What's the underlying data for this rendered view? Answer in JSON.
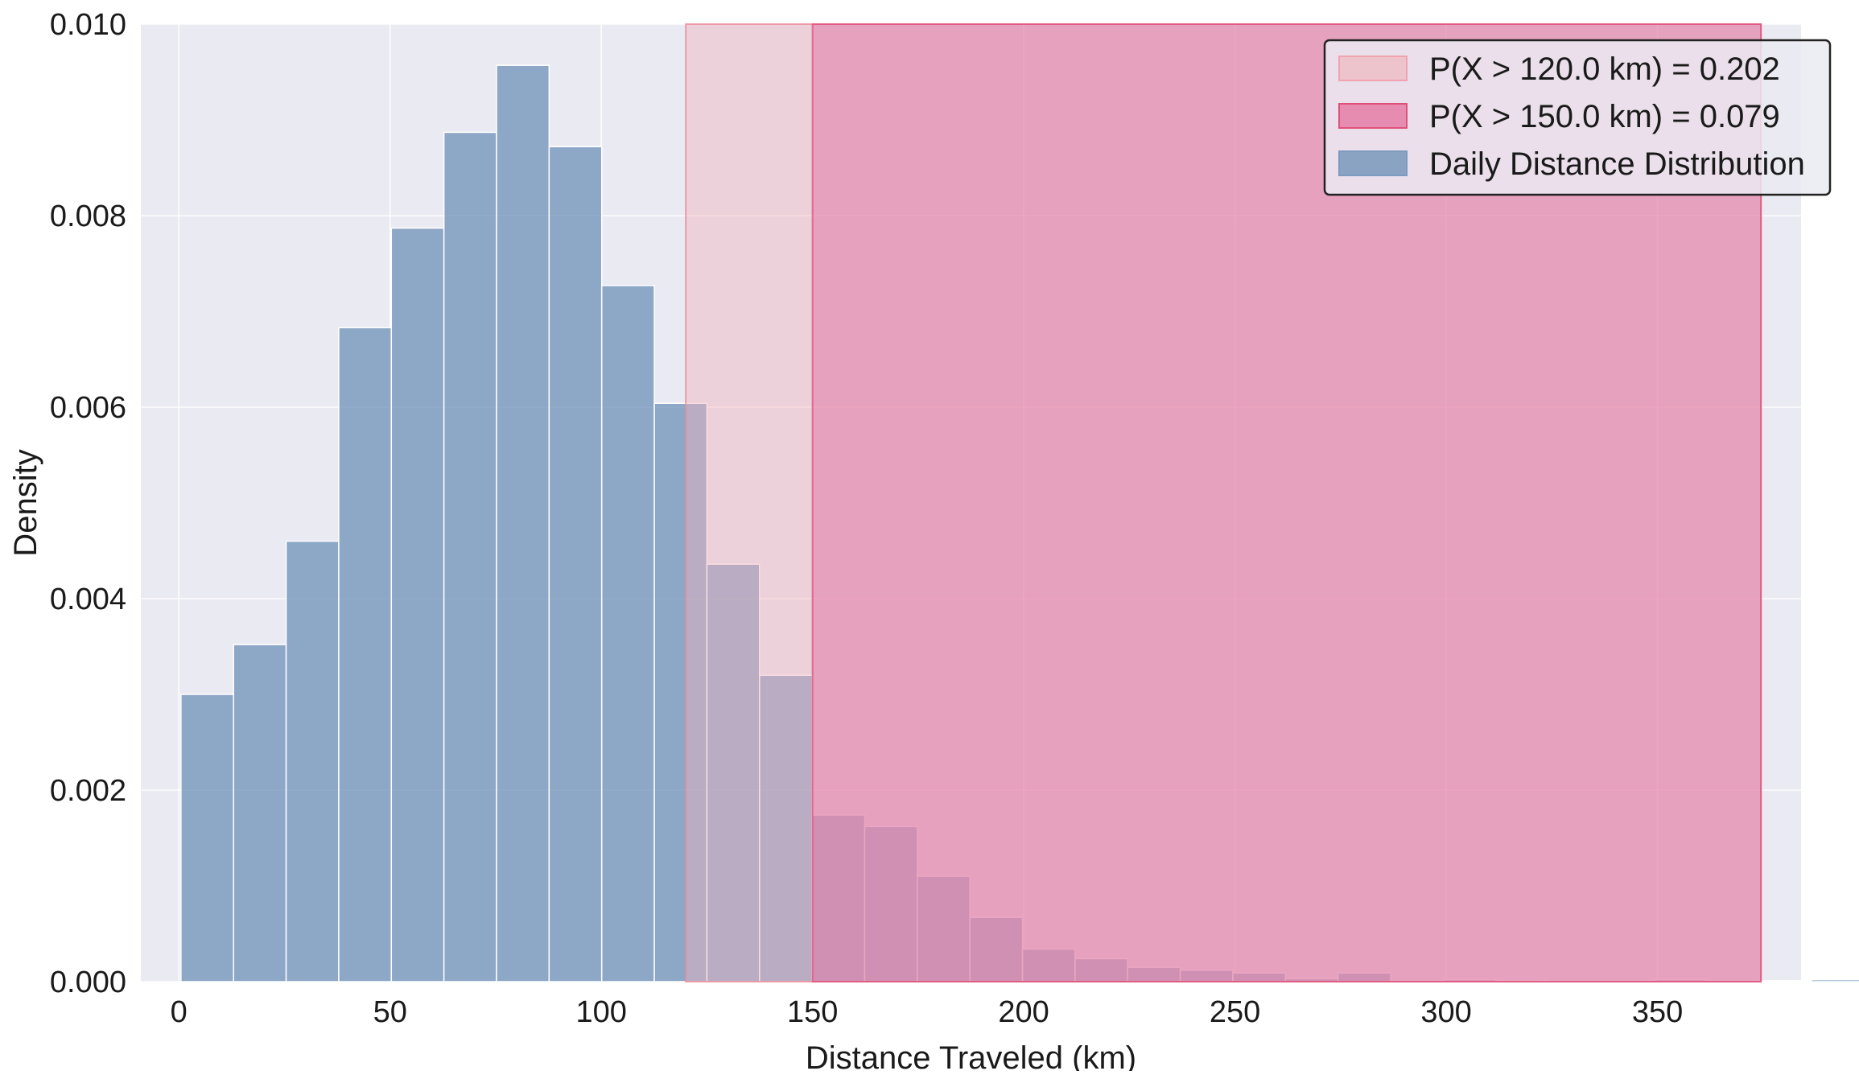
{
  "chart_data": {
    "type": "bar",
    "title": "",
    "xlabel": "Distance Traveled (km)",
    "ylabel": "Density",
    "xlim": [
      -9,
      384
    ],
    "ylim": [
      0,
      0.01
    ],
    "xticks": [
      0,
      50,
      100,
      150,
      200,
      250,
      300,
      350
    ],
    "xtick_labels": [
      "0",
      "50",
      "100",
      "150",
      "200",
      "250",
      "300",
      "350"
    ],
    "yticks": [
      0,
      0.002,
      0.004,
      0.006,
      0.008,
      0.01
    ],
    "ytick_labels": [
      "0.000",
      "0.002",
      "0.004",
      "0.006",
      "0.008",
      "0.010"
    ],
    "grid": true,
    "legend_position": "top-right",
    "histogram": {
      "name": "Daily Distance Distribution",
      "color": "#7c9bbf",
      "bin_start": 0.5,
      "bin_width": 12.45,
      "values": [
        0.003,
        0.00352,
        0.0046,
        0.00683,
        0.00787,
        0.00887,
        0.00957,
        0.00872,
        0.00727,
        0.00604,
        0.00436,
        0.0032,
        0.00174,
        0.00162,
        0.0011,
        0.00067,
        0.00034,
        0.00024,
        0.00015,
        0.00012,
        9e-05,
        3e-05,
        9e-05,
        0.0,
        2e-05,
        1e-05,
        0.0,
        0.0,
        2e-05,
        0.0,
        1e-05,
        2e-05
      ]
    },
    "regions": [
      {
        "name": "P(X > 120.0 km) = 0.202",
        "x_start": 120.0,
        "x_end": 374.5,
        "color": "#f2b3bd",
        "edge_color": "#e98a9a",
        "opacity": 0.45
      },
      {
        "name": "P(X > 150.0 km) = 0.079",
        "x_start": 150.0,
        "x_end": 374.5,
        "color": "#e07aa8",
        "edge_color": "#e0507a",
        "opacity": 0.55
      }
    ],
    "legend": [
      {
        "label": "P(X > 120.0 km) = 0.202",
        "color": "#edc3cc",
        "edge": "#f2a3b0"
      },
      {
        "label": "P(X > 150.0 km) = 0.079",
        "color": "#e58cb0",
        "edge": "#e0507a"
      },
      {
        "label": "Daily Distance Distribution",
        "color": "#8aa3c3",
        "edge": "#7c9bbf"
      }
    ]
  }
}
